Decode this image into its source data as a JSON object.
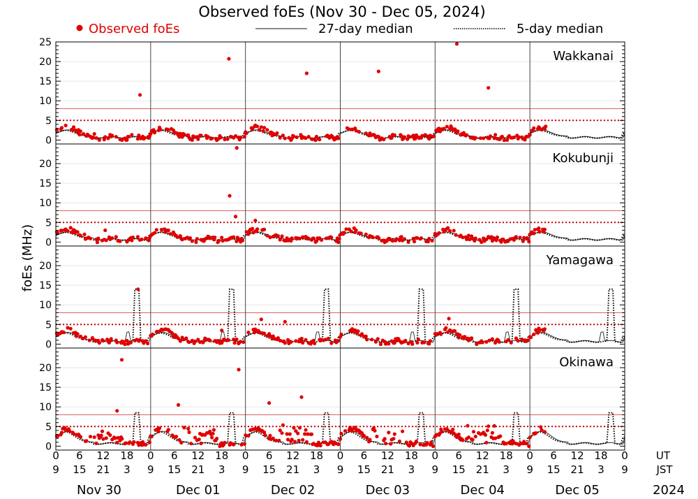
{
  "chart_data": {
    "type": "scatter",
    "title": "Observed foEs (Nov 30 - Dec 05, 2024)",
    "ylabel": "foEs (MHz)",
    "legend": {
      "observed": "Observed foEs",
      "median27": "27-day median",
      "median5": "5-day median"
    },
    "ylim": [
      -1,
      25
    ],
    "xlim_hours": [
      0,
      144
    ],
    "threshold_solid": 8,
    "threshold_dotted": 5,
    "ut_label": "UT",
    "jst_label": "JST",
    "year": "2024",
    "ut_ticks": [
      "0",
      "6",
      "12",
      "18",
      "0",
      "6",
      "12",
      "18",
      "0",
      "6",
      "12",
      "18",
      "0",
      "6",
      "12",
      "18",
      "0",
      "6",
      "12",
      "18",
      "0",
      "6",
      "12",
      "18",
      "0"
    ],
    "jst_ticks": [
      "9",
      "15",
      "21",
      "3",
      "9",
      "15",
      "21",
      "3",
      "9",
      "15",
      "21",
      "3",
      "9",
      "15",
      "21",
      "3",
      "9",
      "15",
      "21",
      "3",
      "9",
      "15",
      "21",
      "3",
      "9"
    ],
    "days": [
      "Nov 30",
      "Dec 01",
      "Dec 02",
      "Dec 03",
      "Dec 04",
      "Dec 05"
    ],
    "panels": [
      {
        "station": "Wakkanai",
        "yticks": [
          0,
          5,
          10,
          15,
          20,
          25
        ],
        "outliers": [
          [
            21.3,
            11.5
          ],
          [
            43.8,
            20.7
          ],
          [
            63.5,
            17
          ],
          [
            81.7,
            17.5
          ],
          [
            101.5,
            24.5
          ],
          [
            109.5,
            13.3
          ]
        ]
      },
      {
        "station": "Kokubunji",
        "yticks": [
          0,
          5,
          10,
          15,
          20
        ],
        "outliers": [
          [
            44,
            11.8
          ],
          [
            45.8,
            24
          ],
          [
            45.5,
            6.5
          ],
          [
            12.5,
            3
          ],
          [
            50.5,
            5.5
          ]
        ]
      },
      {
        "station": "Yamagawa",
        "yticks": [
          0,
          5,
          10,
          15,
          20
        ],
        "outliers": [
          [
            20.8,
            14
          ],
          [
            42,
            3.5
          ],
          [
            52,
            6.3
          ],
          [
            58,
            5.7
          ],
          [
            99.5,
            6.5
          ]
        ]
      },
      {
        "station": "Okinawa",
        "yticks": [
          0,
          5,
          10,
          15,
          20
        ],
        "outliers": [
          [
            16.7,
            22
          ],
          [
            46.3,
            19.5
          ],
          [
            62.2,
            12.5
          ],
          [
            15.5,
            9
          ],
          [
            31,
            10.5
          ],
          [
            54,
            11
          ]
        ]
      }
    ]
  }
}
